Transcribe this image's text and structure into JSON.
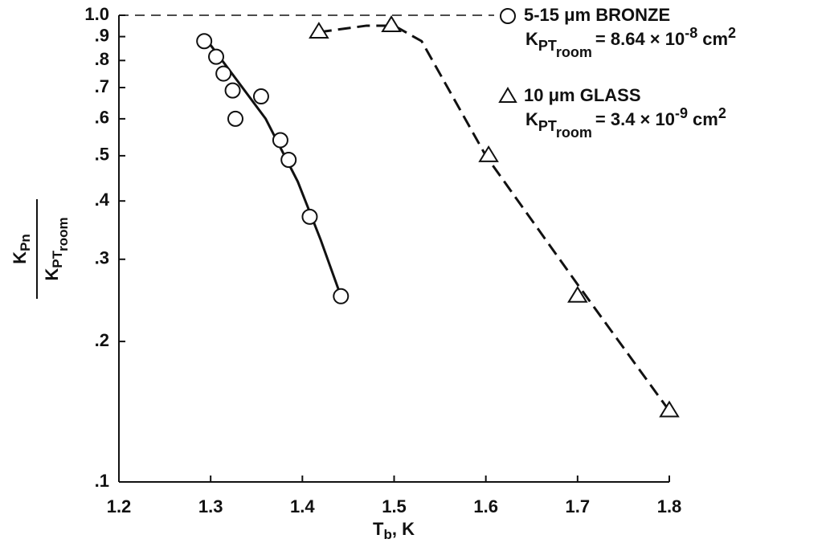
{
  "chart_data": {
    "type": "scatter",
    "x_label": {
      "main": "T",
      "sub": "b",
      "rest": ", K"
    },
    "y_label": {
      "num_main": "K",
      "num_sub": "Pn",
      "den_main": "K",
      "den_sub": "PT",
      "den_subsub": "room"
    },
    "xlim": [
      1.2,
      1.8
    ],
    "xticks": [
      1.2,
      1.3,
      1.4,
      1.5,
      1.6,
      1.7,
      1.8
    ],
    "ylim": [
      0.1,
      1.0
    ],
    "log_y": true,
    "yticks": [
      {
        "value": 0.1,
        "label": ".1"
      },
      {
        "value": 0.2,
        "label": ".2"
      },
      {
        "value": 0.3,
        "label": ".3"
      },
      {
        "value": 0.4,
        "label": ".4"
      },
      {
        "value": 0.5,
        "label": ".5"
      },
      {
        "value": 0.6,
        "label": ".6"
      },
      {
        "value": 0.7,
        "label": ".7"
      },
      {
        "value": 0.8,
        "label": ".8"
      },
      {
        "value": 0.9,
        "label": ".9"
      },
      {
        "value": 1,
        "label": "1.0"
      }
    ],
    "reference_line": 1.0,
    "legend": "top-right",
    "series": [
      {
        "name": "5-15 μm BRONZE",
        "marker": "circle",
        "line": "solid",
        "color": "#111",
        "note": {
          "main": "K",
          "sub": "PT",
          "subsub": "room",
          "eq": "= 8.64 × 10",
          "exp": "-8",
          "unit": "cm",
          "unit_exp": "2"
        },
        "x": [
          1.293,
          1.306,
          1.314,
          1.324,
          1.327,
          1.355,
          1.376,
          1.385,
          1.408,
          1.442
        ],
        "values": [
          0.88,
          0.815,
          0.75,
          0.69,
          0.6,
          0.67,
          0.54,
          0.49,
          0.37,
          0.25
        ],
        "fit_x": [
          1.293,
          1.33,
          1.36,
          1.395,
          1.42,
          1.442
        ],
        "fit_y": [
          0.9,
          0.72,
          0.6,
          0.44,
          0.33,
          0.25
        ]
      },
      {
        "name": "10 μm GLASS",
        "marker": "triangle",
        "line": "dashed",
        "color": "#111",
        "note": {
          "main": "K",
          "sub": "PT",
          "subsub": "room",
          "eq": "= 3.4 × 10",
          "exp": "-9",
          "unit": "cm",
          "unit_exp": "2"
        },
        "x": [
          1.418,
          1.497,
          1.603,
          1.7,
          1.8
        ],
        "values": [
          0.92,
          0.95,
          0.5,
          0.25,
          0.142
        ],
        "fit_x": [
          1.418,
          1.47,
          1.5,
          1.53,
          1.6,
          1.7,
          1.8
        ],
        "fit_y": [
          0.92,
          0.95,
          0.95,
          0.88,
          0.5,
          0.265,
          0.142
        ]
      }
    ]
  }
}
